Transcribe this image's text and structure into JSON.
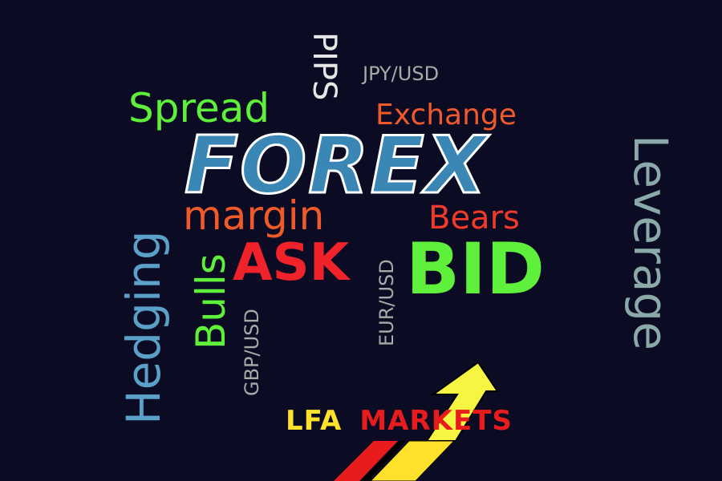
{
  "words": {
    "forex": "FOREX",
    "spread": "Spread",
    "exchange": "Exchange",
    "jpy_usd": "JPY/USD",
    "pips": "PIPS",
    "margin": "margin",
    "bears": "Bears",
    "ask": "ASK",
    "bid": "BID",
    "hedging": "Hedging",
    "bulls": "Bulls",
    "gbp_usd": "GBP/USD",
    "eur_usd": "EUR/USD",
    "leverage": "Leverage"
  },
  "logo": {
    "lfa": "LFA",
    "markets": "MARKETS"
  },
  "colors": {
    "background": "#0b0c24",
    "green": "#5ef03a",
    "orange": "#f05a2a",
    "red": "#f0222a",
    "blue": "#3a86b5",
    "gray": "#a9a9a9",
    "yellow": "#ffe02a"
  }
}
